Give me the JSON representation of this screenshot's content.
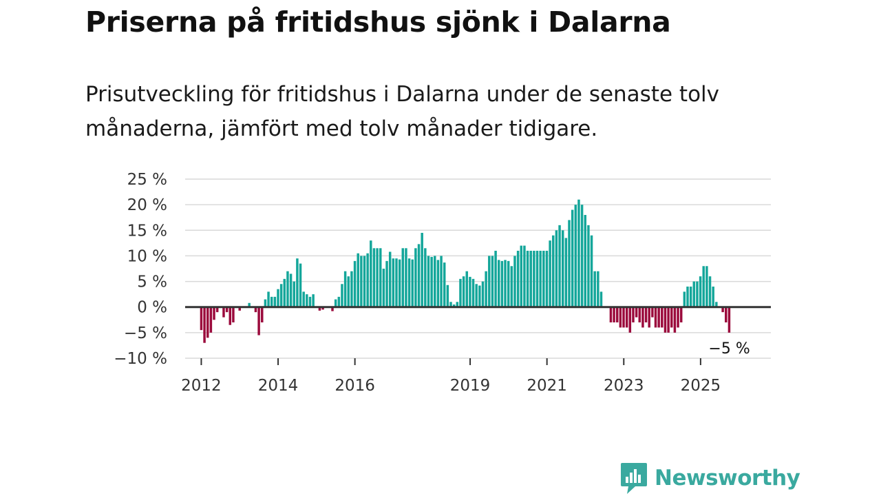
{
  "title": "Priserna på fritidshus sjönk i Dalarna",
  "subtitle": "Prisutveckling för fritidshus i Dalarna under de senaste tolv månaderna, jämfört med tolv månader tidigare.",
  "brand": {
    "name": "Newsworthy",
    "color": "#3aa99f"
  },
  "colors": {
    "positive": "#14a69a",
    "negative": "#9b0a3c",
    "grid": "#d9d9d9",
    "zero": "#333333"
  },
  "chart_data": {
    "type": "bar",
    "ylim": [
      -10,
      25
    ],
    "yticks": [
      25,
      20,
      15,
      10,
      5,
      0,
      -5,
      -10
    ],
    "ytick_labels": [
      "25 %",
      "20 %",
      "15 %",
      "10 %",
      "5 %",
      "0 %",
      "−5 %",
      "−10 %"
    ],
    "x_start": 2012.0,
    "x_step": 0.0833,
    "xticks": [
      2012,
      2014,
      2016,
      2019,
      2021,
      2023,
      2025
    ],
    "xtick_labels": [
      "2012",
      "2014",
      "2016",
      "2019",
      "2021",
      "2023",
      "2025"
    ],
    "values": [
      -4.5,
      -7,
      -6,
      -5,
      -2.5,
      -1,
      0,
      -2,
      -1,
      -3.5,
      -3,
      0,
      -0.7,
      0,
      0,
      0.8,
      0,
      -1,
      -5.5,
      -3,
      1.5,
      3,
      2,
      2,
      3.5,
      4.5,
      5.5,
      7,
      6.5,
      5,
      9.5,
      8.5,
      3,
      2.5,
      2,
      2.5,
      0,
      -0.7,
      -0.5,
      0,
      0,
      -0.8,
      1.5,
      2,
      4.5,
      7,
      6,
      7,
      9,
      10.5,
      10,
      10,
      10.5,
      13,
      11.5,
      11.5,
      11.5,
      7.5,
      9,
      10.8,
      9.5,
      9.5,
      9.3,
      11.5,
      11.5,
      9.5,
      9.3,
      11.5,
      12.3,
      14.5,
      11.5,
      10,
      9.8,
      10,
      9.2,
      10,
      8.7,
      4.3,
      1,
      0.5,
      1,
      5.5,
      6,
      7,
      5.9,
      5.5,
      4.5,
      4.2,
      5,
      7,
      10,
      10,
      11,
      9.2,
      9,
      9.2,
      9,
      8,
      10,
      11,
      12,
      12,
      11,
      11,
      11,
      11,
      11,
      11,
      11,
      13,
      14,
      15,
      16,
      15,
      13.5,
      17,
      19,
      20,
      21,
      20,
      18,
      16,
      14,
      7,
      7,
      3,
      0,
      0,
      -3,
      -3,
      -3,
      -4,
      -4,
      -4,
      -5,
      -3,
      -2,
      -3,
      -4,
      -3,
      -4,
      -2,
      -4,
      -4,
      -4,
      -5,
      -5,
      -4,
      -5,
      -4,
      -3,
      3,
      4,
      4,
      5,
      5,
      6,
      8,
      8,
      6,
      4,
      1,
      0,
      -1,
      -3,
      -5
    ],
    "annotation": {
      "label": "−5 %",
      "value": -5
    }
  }
}
